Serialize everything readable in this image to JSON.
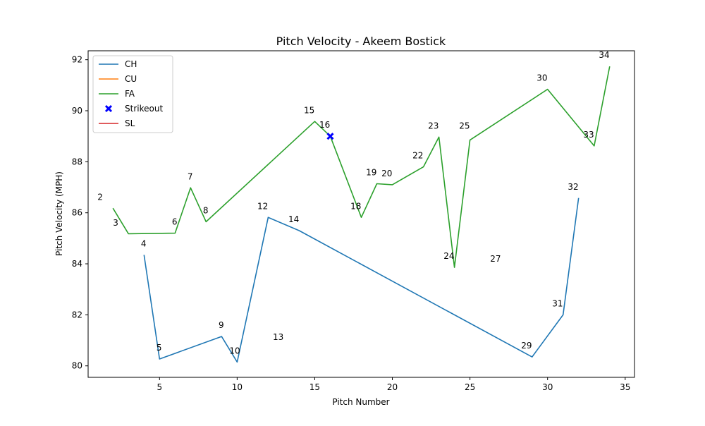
{
  "chart_data": {
    "type": "line",
    "title": "Pitch Velocity - Akeem Bostick",
    "xlabel": "Pitch Number",
    "ylabel": "Pitch Velocity (MPH)",
    "xlim": [
      0.4,
      35.6
    ],
    "ylim": [
      79.55,
      92.35
    ],
    "xticks": [
      5,
      10,
      15,
      20,
      25,
      30,
      35
    ],
    "yticks": [
      80,
      82,
      84,
      86,
      88,
      90,
      92
    ],
    "legend": "upper-left",
    "series": [
      {
        "name": "CH",
        "color": "#1f77b4",
        "points": [
          [
            4,
            84.35
          ],
          [
            5,
            80.27
          ],
          [
            9,
            81.15
          ],
          [
            10,
            80.15
          ],
          [
            12,
            85.82
          ],
          [
            14,
            85.3
          ],
          [
            29,
            80.35
          ],
          [
            31,
            82.0
          ],
          [
            32,
            86.58
          ]
        ]
      },
      {
        "name": "CU",
        "color": "#ff7f0e",
        "points": []
      },
      {
        "name": "FA",
        "color": "#2ca02c",
        "points": [
          [
            2,
            86.18
          ],
          [
            3,
            85.18
          ],
          [
            6,
            85.2
          ],
          [
            7,
            86.98
          ],
          [
            8,
            85.65
          ],
          [
            15,
            89.58
          ],
          [
            16,
            89.0
          ],
          [
            18,
            85.82
          ],
          [
            19,
            87.14
          ],
          [
            20,
            87.1
          ],
          [
            22,
            87.8
          ],
          [
            23,
            88.97
          ],
          [
            24,
            83.86
          ],
          [
            25,
            88.85
          ],
          [
            30,
            90.84
          ],
          [
            33,
            88.62
          ],
          [
            34,
            91.74
          ]
        ]
      },
      {
        "name": "SL",
        "color": "#d62728",
        "points": []
      }
    ],
    "strikeouts": {
      "name": "Strikeout",
      "color": "#0000ff",
      "points": [
        [
          16,
          89.0
        ]
      ]
    },
    "annotations": [
      {
        "text": "2",
        "x": 1,
        "y": 86.5
      },
      {
        "text": "3",
        "x": 2,
        "y": 85.5
      },
      {
        "text": "4",
        "x": 3.8,
        "y": 84.68
      },
      {
        "text": "5",
        "x": 4.8,
        "y": 80.6
      },
      {
        "text": "6",
        "x": 5.8,
        "y": 85.53
      },
      {
        "text": "7",
        "x": 6.8,
        "y": 87.31
      },
      {
        "text": "8",
        "x": 7.8,
        "y": 85.98
      },
      {
        "text": "9",
        "x": 8.8,
        "y": 81.48
      },
      {
        "text": "10",
        "x": 9.5,
        "y": 80.48
      },
      {
        "text": "12",
        "x": 11.3,
        "y": 86.15
      },
      {
        "text": "13",
        "x": 12.3,
        "y": 81.02
      },
      {
        "text": "14",
        "x": 13.3,
        "y": 85.63
      },
      {
        "text": "15",
        "x": 14.3,
        "y": 89.91
      },
      {
        "text": "16",
        "x": 15.3,
        "y": 89.33
      },
      {
        "text": "18",
        "x": 17.3,
        "y": 86.15
      },
      {
        "text": "19",
        "x": 18.3,
        "y": 87.47
      },
      {
        "text": "20",
        "x": 19.3,
        "y": 87.43
      },
      {
        "text": "22",
        "x": 21.3,
        "y": 88.13
      },
      {
        "text": "23",
        "x": 22.3,
        "y": 89.3
      },
      {
        "text": "24",
        "x": 23.3,
        "y": 84.19
      },
      {
        "text": "25",
        "x": 24.3,
        "y": 89.3
      },
      {
        "text": "27",
        "x": 26.3,
        "y": 84.09
      },
      {
        "text": "29",
        "x": 28.3,
        "y": 80.68
      },
      {
        "text": "30",
        "x": 29.3,
        "y": 91.17
      },
      {
        "text": "31",
        "x": 30.3,
        "y": 82.33
      },
      {
        "text": "32",
        "x": 31.3,
        "y": 86.91
      },
      {
        "text": "33",
        "x": 32.3,
        "y": 88.95
      },
      {
        "text": "34",
        "x": 33.3,
        "y": 92.07
      }
    ]
  }
}
